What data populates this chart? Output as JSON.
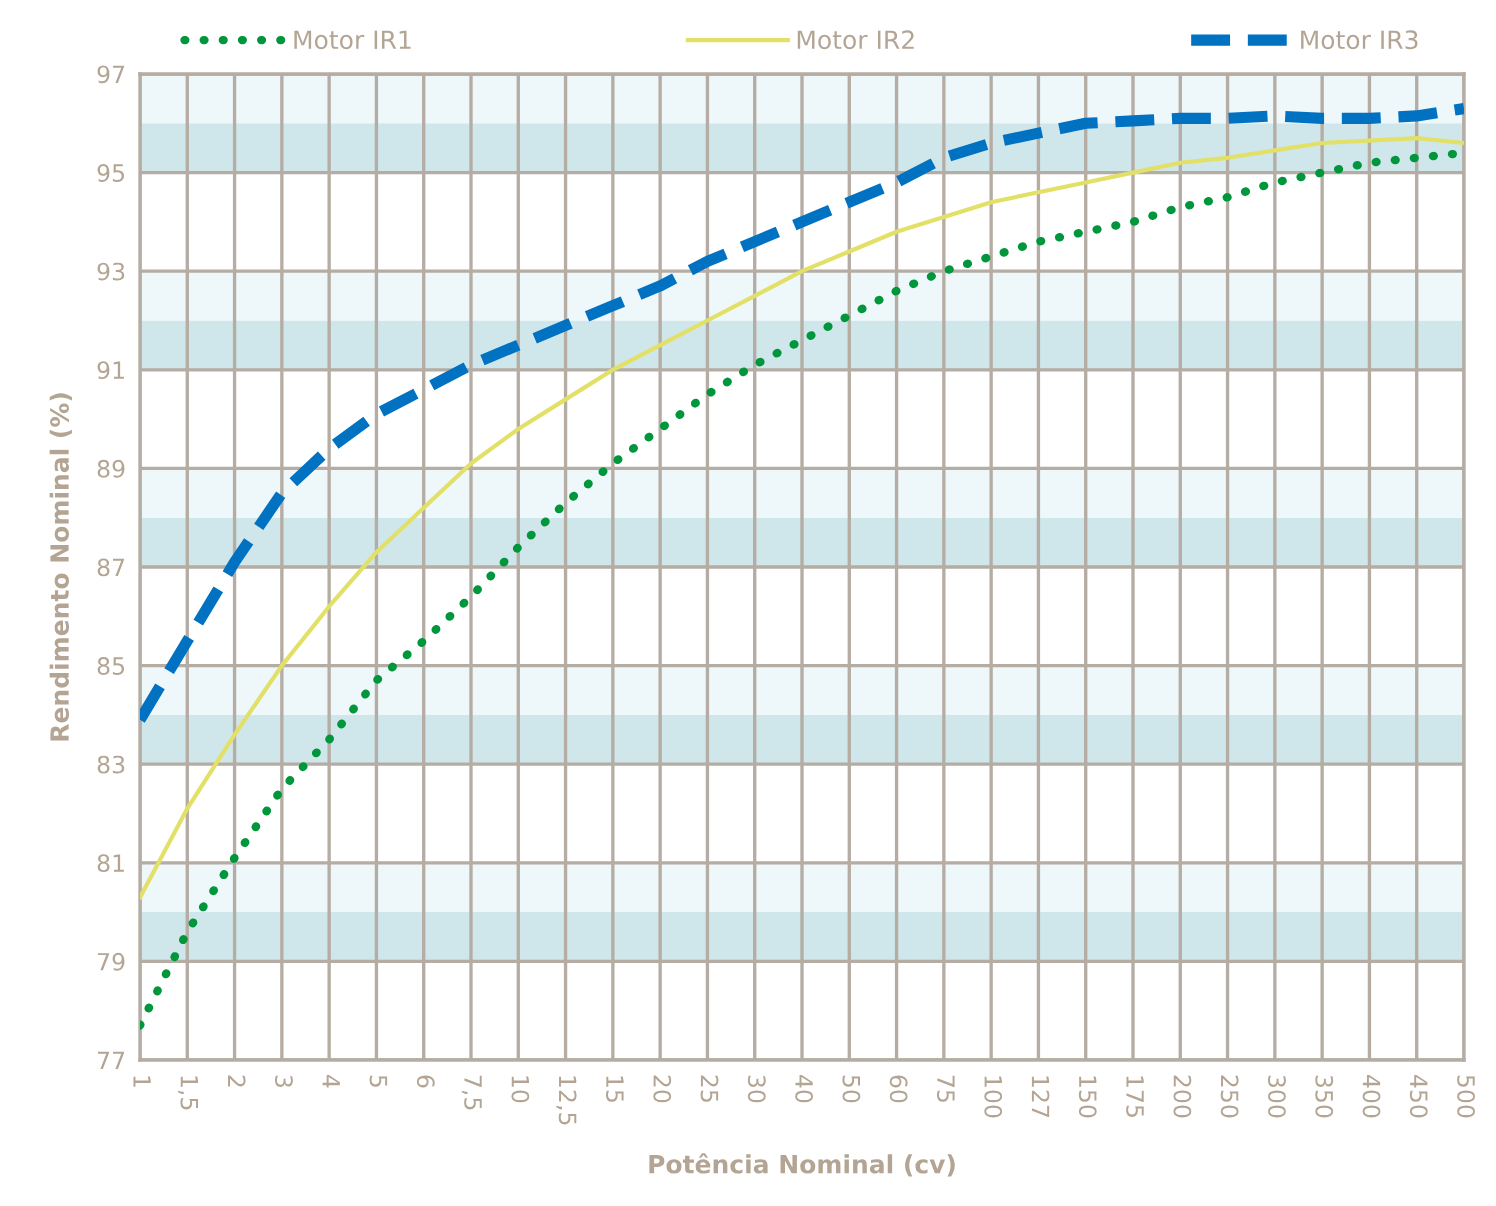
{
  "chart_data": {
    "type": "line",
    "xlabel": "Potência Nominal (cv)",
    "ylabel": "Rendimento Nominal (%)",
    "categories": [
      "1",
      "1,5",
      "2",
      "3",
      "4",
      "5",
      "6",
      "7,5",
      "10",
      "12,5",
      "15",
      "20",
      "25",
      "30",
      "40",
      "50",
      "60",
      "75",
      "100",
      "127",
      "150",
      "175",
      "200",
      "250",
      "300",
      "350",
      "400",
      "450",
      "500"
    ],
    "series": [
      {
        "name": "Motor IR1",
        "color": "#00963c",
        "line_style": "dotted",
        "values": [
          77.7,
          79.6,
          81.1,
          82.5,
          83.5,
          84.7,
          85.5,
          86.4,
          87.4,
          88.3,
          89.1,
          89.8,
          90.5,
          91.1,
          91.6,
          92.1,
          92.6,
          93.0,
          93.3,
          93.6,
          93.8,
          94.0,
          94.3,
          94.5,
          94.8,
          95.0,
          95.2,
          95.3,
          95.4
        ]
      },
      {
        "name": "Motor IR2",
        "color": "#e2e066",
        "line_style": "solid",
        "values": [
          80.3,
          82.1,
          83.6,
          85.0,
          86.2,
          87.3,
          88.2,
          89.1,
          89.8,
          90.4,
          91.0,
          91.5,
          92.0,
          92.5,
          93.0,
          93.4,
          93.8,
          94.1,
          94.4,
          94.6,
          94.8,
          95.0,
          95.2,
          95.3,
          95.45,
          95.6,
          95.65,
          95.7,
          95.6
        ]
      },
      {
        "name": "Motor IR3",
        "color": "#0072c1",
        "line_style": "dashed",
        "values": [
          83.9,
          85.5,
          87.1,
          88.5,
          89.4,
          90.1,
          90.6,
          91.1,
          91.5,
          91.9,
          92.3,
          92.7,
          93.2,
          93.6,
          94.0,
          94.4,
          94.8,
          95.3,
          95.6,
          95.8,
          96.0,
          96.05,
          96.1,
          96.1,
          96.15,
          96.1,
          96.1,
          96.15,
          96.3
        ]
      }
    ],
    "ylim": [
      77,
      97
    ],
    "yticks": [
      77,
      79,
      81,
      83,
      85,
      87,
      89,
      91,
      93,
      95,
      97
    ],
    "bands": [
      {
        "axis": "y",
        "from": 79,
        "to": 80,
        "color": "#cfe7eb"
      },
      {
        "axis": "y",
        "from": 80,
        "to": 81,
        "color": "#eef7fa"
      },
      {
        "axis": "y",
        "from": 83,
        "to": 84,
        "color": "#cfe7eb"
      },
      {
        "axis": "y",
        "from": 84,
        "to": 85,
        "color": "#eef7fa"
      },
      {
        "axis": "y",
        "from": 87,
        "to": 88,
        "color": "#cfe7eb"
      },
      {
        "axis": "y",
        "from": 88,
        "to": 89,
        "color": "#eef7fa"
      },
      {
        "axis": "y",
        "from": 91,
        "to": 92,
        "color": "#cfe7eb"
      },
      {
        "axis": "y",
        "from": 92,
        "to": 93,
        "color": "#eef7fa"
      },
      {
        "axis": "y",
        "from": 95,
        "to": 96,
        "color": "#cfe7eb"
      },
      {
        "axis": "y",
        "from": 96,
        "to": 97,
        "color": "#eef7fa"
      }
    ],
    "grid": true,
    "legend": "top",
    "marker": "none"
  }
}
